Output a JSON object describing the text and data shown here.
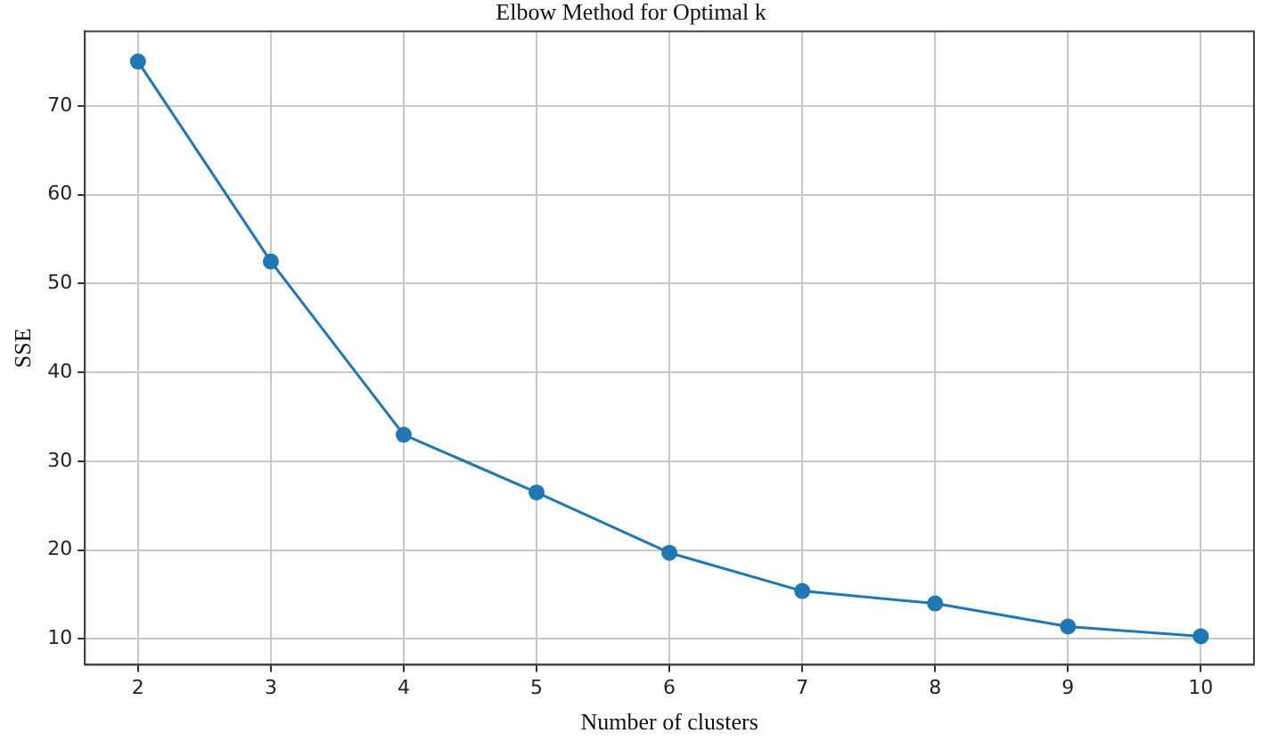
{
  "chart_data": {
    "type": "line",
    "title": "Elbow Method for Optimal k",
    "xlabel": "Number of clusters",
    "ylabel": "SSE",
    "x": [
      2,
      3,
      4,
      5,
      6,
      7,
      8,
      9,
      10
    ],
    "series": [
      {
        "color": "#1f77b4",
        "values": [
          75,
          52.5,
          33,
          26.5,
          19.7,
          15.4,
          14,
          11.4,
          10.3
        ]
      }
    ],
    "xlim": [
      1.6,
      10.4
    ],
    "xticks": [
      2,
      3,
      4,
      5,
      6,
      7,
      8,
      9,
      10
    ],
    "ylim": [
      7.1,
      78.4
    ],
    "yticks": [
      10,
      20,
      30,
      40,
      50,
      60,
      70
    ],
    "grid": true,
    "marker": "circle",
    "line_style": "solid"
  }
}
